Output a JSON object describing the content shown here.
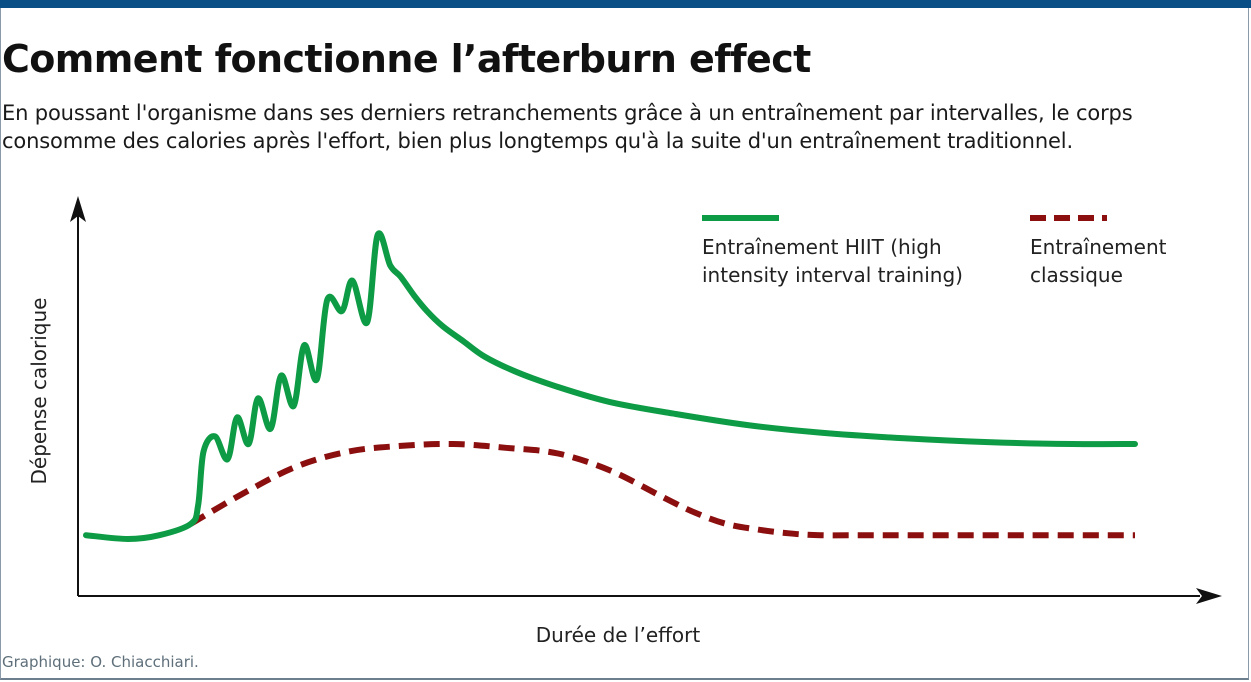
{
  "header": {
    "title": "Comment fonctionne l’afterburn effect",
    "subtitle": "En poussant l'organisme dans ses derniers retranchements grâce à un entraînement par intervalles, le corps consomme des calories après l'effort, bien plus longtemps qu'à la suite d'un entraînement traditionnel."
  },
  "footer": {
    "credit": "Graphique: O. Chiacchiari."
  },
  "chart_data": {
    "type": "line",
    "title": "",
    "xlabel": "Durée de l’effort",
    "ylabel": "Dépense calorique",
    "axis_ticks": false,
    "grid": false,
    "legend_position": "top-right",
    "xlim": [
      0,
      100
    ],
    "ylim": [
      0,
      100
    ],
    "series": [
      {
        "name": "Entraînement HIIT (high intensity interval training)",
        "color": "#0e9b45",
        "dash": false,
        "x": [
          0,
          4,
          7,
          10,
          10.7,
          11.2,
          12.3,
          13.5,
          14.4,
          15.5,
          16.4,
          17.6,
          18.6,
          19.8,
          20.8,
          22,
          23,
          24.4,
          25.4,
          26.8,
          27.8,
          29,
          30,
          31.3,
          32.5,
          34,
          36,
          38,
          41,
          45,
          50,
          56,
          63,
          70,
          78,
          86,
          94,
          100
        ],
        "y": [
          16,
          15,
          16,
          19,
          24,
          38,
          42,
          36,
          47,
          40,
          52,
          44,
          58,
          50,
          66,
          57,
          78,
          75,
          83,
          72,
          95,
          87,
          84,
          79,
          75,
          71,
          67,
          63,
          59,
          55,
          51,
          48,
          45,
          43,
          41.5,
          40.5,
          40,
          40
        ]
      },
      {
        "name": "Entraînement classique",
        "color": "#8b0f0f",
        "dash": true,
        "x": [
          10,
          15,
          20,
          25,
          30,
          35,
          40,
          45,
          50,
          55,
          58,
          61,
          64,
          67,
          70,
          75,
          80,
          90,
          100
        ],
        "y": [
          19,
          27,
          34,
          38,
          39.5,
          40,
          39,
          37.5,
          33,
          26,
          22,
          19,
          17.5,
          16.5,
          16,
          16,
          16,
          16,
          16
        ]
      }
    ]
  }
}
